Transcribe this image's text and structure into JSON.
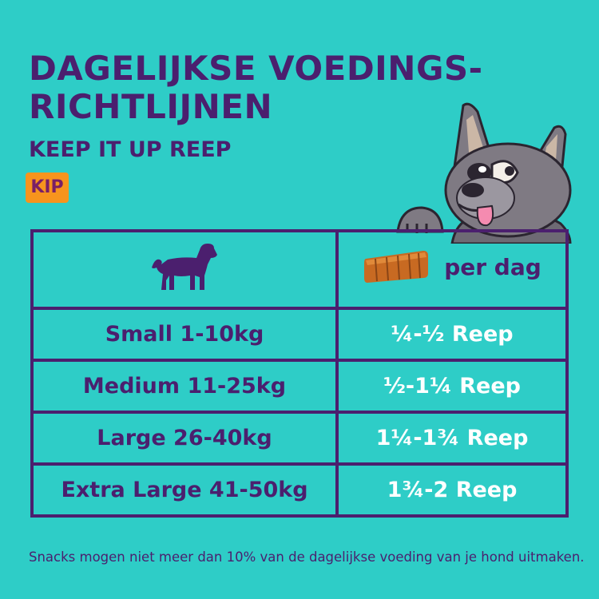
{
  "header": {
    "title_line1": "DAGELIJKSE VOEDINGS-",
    "title_line2": "RICHTLIJNEN",
    "subtitle": "KEEP IT UP REEP",
    "flavor_badge": "KIP"
  },
  "table": {
    "per_day_label": "per dag",
    "rows": [
      {
        "size": "Small 1-10kg",
        "amount": "¼-½ Reep"
      },
      {
        "size": "Medium 11-25kg",
        "amount": "½-1¼ Reep"
      },
      {
        "size": "Large 26-40kg",
        "amount": "1¼-1¾ Reep"
      },
      {
        "size": "Extra Large 41-50kg",
        "amount": "1¾-2 Reep"
      }
    ]
  },
  "footnote": "Snacks mogen niet meer dan 10% van de dagelijkse voeding van je hond uitmaken.",
  "colors": {
    "background": "#2ecdc7",
    "primary_purple": "#4b1f6e",
    "badge_orange": "#f7941d",
    "amount_text": "#ffffff"
  },
  "icons": [
    "dog-silhouette-icon",
    "treat-strip-icon",
    "french-bulldog-illustration"
  ]
}
